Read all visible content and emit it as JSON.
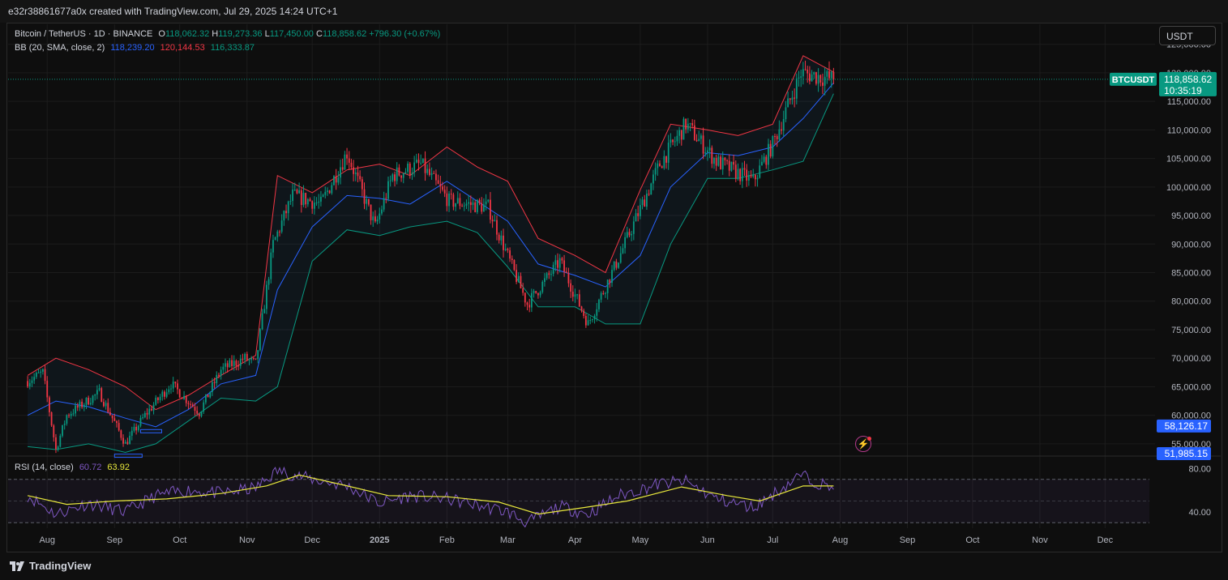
{
  "header": {
    "attribution": "e32r38861677a0x created with TradingView.com, Jul 29, 2025 14:24 UTC+1"
  },
  "footer": {
    "logo_text": "TradingView"
  },
  "legend": {
    "symbol": "Bitcoin / TetherUS · 1D · BINANCE",
    "o_label": "O",
    "o_value": "118,062.32",
    "h_label": "H",
    "h_value": "119,273.36",
    "l_label": "L",
    "l_value": "117,450.00",
    "c_label": "C",
    "c_value": "118,858.62",
    "change": "+796.30 (+0.67%)",
    "bb_label": "BB (20, SMA, close, 2)",
    "bb_basis": "118,239.20",
    "bb_upper": "120,144.53",
    "bb_lower": "116,333.87",
    "rsi_label": "RSI (14, close)",
    "rsi_value": "60.72",
    "rsi_ma": "63.92"
  },
  "currency_button": "USDT",
  "price_tag": {
    "symbol": "BTCUSDT",
    "price": "118,858.62",
    "countdown": "10:35:19"
  },
  "marker_labels": [
    "58,126.17",
    "51,985.15"
  ],
  "colors": {
    "up": "#089981",
    "down": "#f23645",
    "basis": "#2962ff",
    "upper_band": "#f23645",
    "lower_band": "#089981",
    "rsi": "#7e57c2",
    "rsi_ma": "#e8e83c",
    "price_tag": "#089981",
    "marker_tag": "#2962ff"
  },
  "chart_data": [
    {
      "type": "candlestick",
      "title": "Bitcoin / TetherUS · 1D · BINANCE",
      "price_axis": {
        "ticks": [
          "125,000.00",
          "120,000.00",
          "115,000.00",
          "110,000.00",
          "105,000.00",
          "100,000.00",
          "95,000.00",
          "90,000.00",
          "85,000.00",
          "80,000.00",
          "75,000.00",
          "70,000.00",
          "65,000.00",
          "60,000.00",
          "55,000.00"
        ],
        "ylim": [
          53000,
          128500
        ]
      },
      "time_axis": {
        "labels": [
          "Aug",
          "Sep",
          "Oct",
          "Nov",
          "Dec",
          "2025",
          "Feb",
          "Mar",
          "Apr",
          "May",
          "Jun",
          "Jul",
          "Aug",
          "Sep",
          "Oct",
          "Nov",
          "Dec"
        ]
      },
      "price_path": {
        "dates": [
          "2024-07-23",
          "2024-07-30",
          "2024-08-05",
          "2024-08-10",
          "2024-08-25",
          "2024-09-06",
          "2024-09-15",
          "2024-09-27",
          "2024-10-10",
          "2024-10-20",
          "2024-10-31",
          "2024-11-05",
          "2024-11-13",
          "2024-11-22",
          "2024-12-05",
          "2024-12-17",
          "2024-12-30",
          "2025-01-07",
          "2025-01-20",
          "2025-02-02",
          "2025-02-20",
          "2025-03-03",
          "2025-03-10",
          "2025-03-25",
          "2025-04-07",
          "2025-04-21",
          "2025-05-10",
          "2025-05-22",
          "2025-06-05",
          "2025-06-22",
          "2025-07-01",
          "2025-07-14",
          "2025-07-29"
        ],
        "close": [
          66000,
          67500,
          54000,
          60000,
          64000,
          55000,
          60000,
          65500,
          60500,
          68000,
          70000,
          69000,
          90000,
          98500,
          97000,
          106000,
          93000,
          102000,
          104000,
          97500,
          96500,
          86000,
          79500,
          87000,
          76000,
          87500,
          104000,
          111000,
          104500,
          101000,
          107500,
          120000,
          118858.62
        ]
      },
      "bollinger": {
        "label": "BB (20, SMA, close, 2)",
        "dates": [
          "2024-07-23",
          "2024-08-05",
          "2024-08-20",
          "2024-09-06",
          "2024-09-20",
          "2024-10-05",
          "2024-10-20",
          "2024-11-05",
          "2024-11-15",
          "2024-12-01",
          "2024-12-17",
          "2025-01-01",
          "2025-01-15",
          "2025-02-01",
          "2025-02-15",
          "2025-03-01",
          "2025-03-15",
          "2025-04-01",
          "2025-04-15",
          "2025-05-01",
          "2025-05-15",
          "2025-06-01",
          "2025-06-15",
          "2025-07-01",
          "2025-07-15",
          "2025-07-29"
        ],
        "upper": [
          67000,
          70000,
          68000,
          65000,
          61000,
          63500,
          67000,
          70500,
          102000,
          99000,
          103000,
          104000,
          102000,
          107000,
          103500,
          101000,
          91000,
          88000,
          85000,
          99500,
          111000,
          110000,
          109000,
          111000,
          123000,
          120144.53
        ],
        "basis": [
          60000,
          62500,
          61500,
          59500,
          58000,
          61000,
          65500,
          67000,
          82000,
          93000,
          98500,
          98000,
          97000,
          101000,
          97500,
          94000,
          86500,
          84500,
          82500,
          88000,
          100000,
          106000,
          105500,
          107000,
          112000,
          118239.2
        ],
        "lower": [
          54500,
          54000,
          55000,
          53500,
          55000,
          59000,
          63000,
          62500,
          65000,
          87000,
          92500,
          91500,
          93000,
          94000,
          92000,
          86000,
          79000,
          79000,
          76000,
          76000,
          90000,
          101500,
          101500,
          103000,
          104500,
          116333.87
        ]
      }
    },
    {
      "type": "line",
      "title": "RSI (14, close)",
      "ticks": [
        "80.00",
        "40.00"
      ],
      "bands": [
        70,
        50,
        30
      ],
      "ylim": [
        25,
        90
      ],
      "series": [
        {
          "name": "RSI",
          "last": 60.72,
          "dates": [
            "2024-07-23",
            "2024-08-05",
            "2024-08-20",
            "2024-09-06",
            "2024-09-20",
            "2024-10-05",
            "2024-10-20",
            "2024-11-05",
            "2024-11-15",
            "2024-12-01",
            "2024-12-17",
            "2025-01-01",
            "2025-01-15",
            "2025-02-01",
            "2025-02-15",
            "2025-03-01",
            "2025-03-10",
            "2025-03-25",
            "2025-04-07",
            "2025-04-21",
            "2025-05-10",
            "2025-05-22",
            "2025-06-05",
            "2025-06-22",
            "2025-07-01",
            "2025-07-14",
            "2025-07-29"
          ],
          "values": [
            55,
            38,
            48,
            40,
            55,
            60,
            57,
            62,
            78,
            70,
            64,
            48,
            55,
            52,
            46,
            40,
            30,
            45,
            38,
            55,
            66,
            68,
            52,
            44,
            56,
            74,
            60.72
          ]
        },
        {
          "name": "RSI MA",
          "last": 63.92,
          "dates": [
            "2024-07-23",
            "2024-08-10",
            "2024-09-01",
            "2024-09-25",
            "2024-10-20",
            "2024-11-10",
            "2024-11-25",
            "2024-12-15",
            "2025-01-05",
            "2025-02-01",
            "2025-02-25",
            "2025-03-15",
            "2025-04-05",
            "2025-04-25",
            "2025-05-20",
            "2025-06-10",
            "2025-06-25",
            "2025-07-15",
            "2025-07-29"
          ],
          "values": [
            55,
            47,
            50,
            52,
            57,
            64,
            74,
            65,
            55,
            54,
            49,
            38,
            44,
            50,
            63,
            55,
            50,
            64,
            63.92
          ]
        }
      ]
    }
  ]
}
